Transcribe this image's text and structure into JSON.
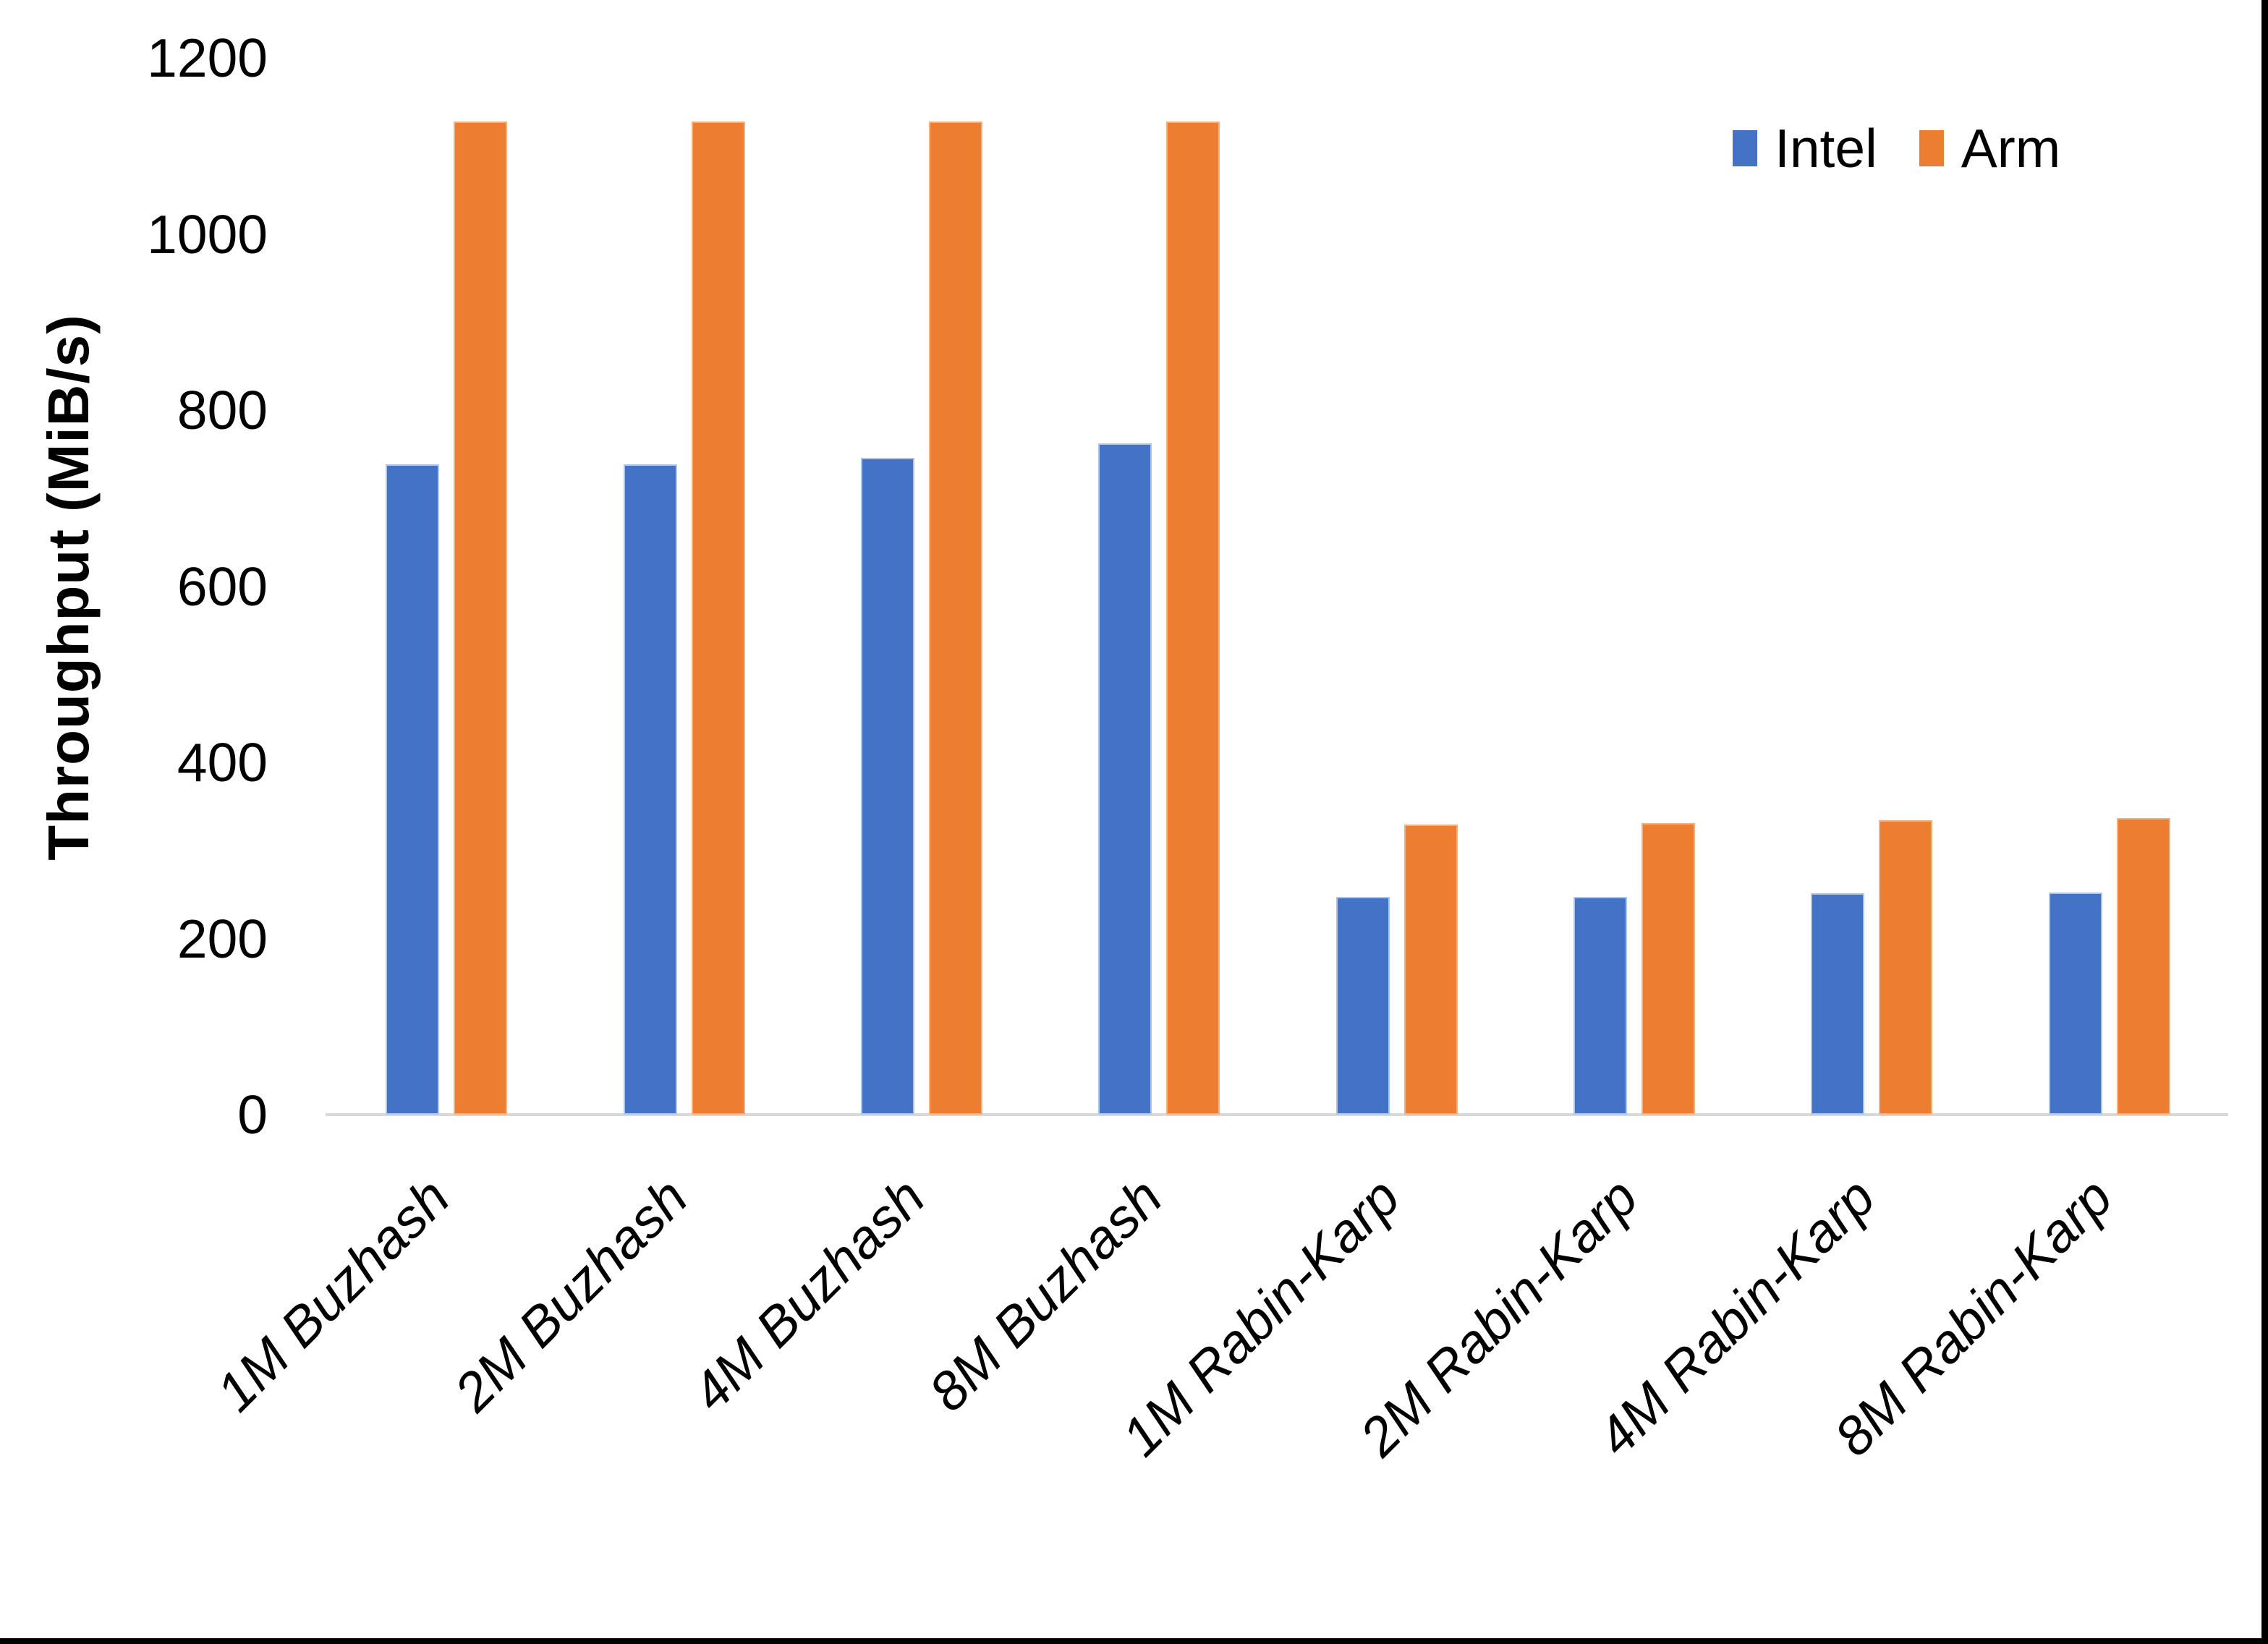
{
  "y_axis": {
    "title": "Throughput (MiB/s)",
    "ticks": [
      "0",
      "200",
      "400",
      "600",
      "800",
      "1000",
      "1200"
    ],
    "tick_values": [
      0,
      200,
      400,
      600,
      800,
      1000,
      1200
    ]
  },
  "chart_data": {
    "type": "bar",
    "title": "",
    "xlabel": "",
    "ylabel": "Throughput (MiB/s)",
    "ylim": [
      0,
      1200
    ],
    "grid": false,
    "legend_position": "top-right",
    "categories": [
      "1M Buzhash",
      "2M Buzhash",
      "4M Buzhash",
      "8M Buzhash",
      "1M Rabin-Karp",
      "2M Rabin-Karp",
      "4M Rabin-Karp",
      "8M Rabin-Karp"
    ],
    "series": [
      {
        "name": "Intel",
        "color": "#4472C4",
        "values": [
          738,
          738,
          746,
          762,
          247,
          247,
          251,
          252
        ]
      },
      {
        "name": "Arm",
        "color": "#ED7D31",
        "values": [
          1128,
          1128,
          1128,
          1128,
          329,
          331,
          334,
          337
        ]
      }
    ]
  }
}
